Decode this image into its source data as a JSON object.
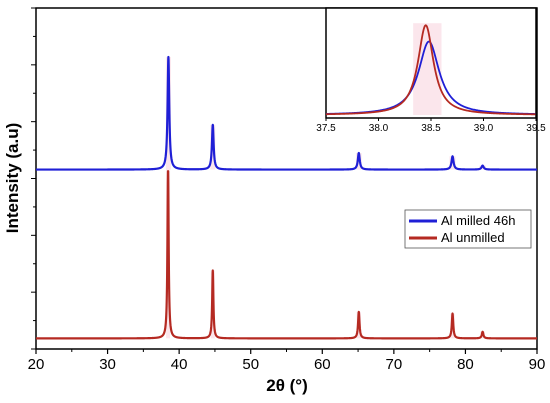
{
  "chart_data": [
    {
      "type": "line",
      "title": "",
      "xlabel": "2θ (°)",
      "ylabel": "Intensity (a.u)",
      "xlim": [
        20,
        90
      ],
      "xticks": [
        "20",
        "30",
        "40",
        "50",
        "60",
        "70",
        "80",
        "90"
      ],
      "y_tick_labels_shown": false,
      "legend_position": "right-middle",
      "series": [
        {
          "name": "Al milled 46h",
          "color": "#1f1fd6",
          "baseline": 0.53,
          "peaks": [
            {
              "x": 38.5,
              "height": 0.34,
              "width": 0.14
            },
            {
              "x": 44.7,
              "height": 0.135,
              "width": 0.14
            },
            {
              "x": 65.1,
              "height": 0.05,
              "width": 0.16
            },
            {
              "x": 78.2,
              "height": 0.04,
              "width": 0.17
            },
            {
              "x": 82.4,
              "height": 0.012,
              "width": 0.18
            }
          ]
        },
        {
          "name": "Al unmilled",
          "color": "#b52a22",
          "baseline": 0.02,
          "peaks": [
            {
              "x": 38.45,
              "height": 0.51,
              "width": 0.1
            },
            {
              "x": 44.7,
              "height": 0.205,
              "width": 0.1
            },
            {
              "x": 65.1,
              "height": 0.08,
              "width": 0.12
            },
            {
              "x": 78.2,
              "height": 0.075,
              "width": 0.12
            },
            {
              "x": 82.4,
              "height": 0.02,
              "width": 0.13
            }
          ]
        }
      ]
    },
    {
      "type": "line",
      "title": "",
      "note": "inset zoom on the main peak",
      "xlim": [
        37.5,
        39.5
      ],
      "xticks": [
        "37.5",
        "38.0",
        "38.5",
        "39.0",
        "39.5"
      ],
      "series": [
        {
          "name": "Al milled 46h",
          "color": "#1f1fd6",
          "center": 38.48,
          "height": 0.72,
          "width": 0.12
        },
        {
          "name": "Al unmilled",
          "color": "#b52a22",
          "center": 38.45,
          "height": 0.88,
          "width": 0.09
        }
      ]
    }
  ]
}
